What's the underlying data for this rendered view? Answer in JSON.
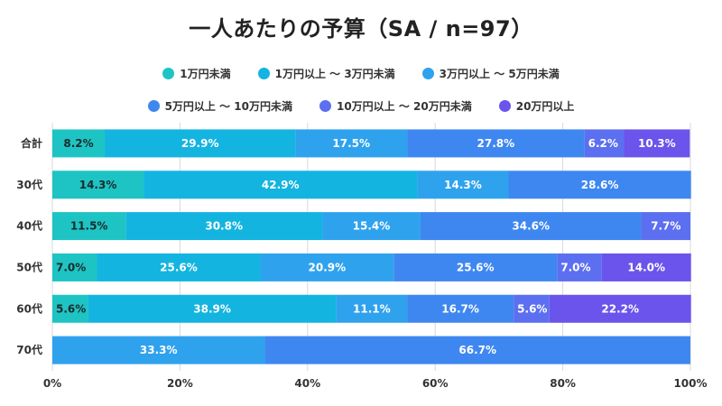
{
  "chart_data": {
    "type": "bar",
    "orientation": "horizontal",
    "stacked": true,
    "title": "一人あたりの予算（SA / n=97）",
    "categories": [
      "合計",
      "30代",
      "40代",
      "50代",
      "60代",
      "70代"
    ],
    "series": [
      {
        "name": "1万円未満",
        "color": "#1ec4c4",
        "values": [
          8.2,
          14.3,
          11.5,
          7.0,
          5.6,
          0
        ]
      },
      {
        "name": "1万円以上 〜 3万円未満",
        "color": "#14b4e0",
        "values": [
          29.9,
          42.9,
          30.8,
          25.6,
          38.9,
          0
        ]
      },
      {
        "name": "3万円以上 〜 5万円未満",
        "color": "#2fa2ee",
        "values": [
          17.5,
          14.3,
          15.4,
          20.9,
          11.1,
          33.3
        ]
      },
      {
        "name": "5万円以上 〜 10万円未満",
        "color": "#3f87f0",
        "values": [
          27.8,
          28.6,
          34.6,
          25.6,
          16.7,
          66.7
        ]
      },
      {
        "name": "10万円以上 〜 20万円未満",
        "color": "#5c6ff0",
        "values": [
          6.2,
          0,
          7.7,
          7.0,
          5.6,
          0
        ]
      },
      {
        "name": "20万円以上",
        "color": "#6a54ec",
        "values": [
          10.3,
          0,
          0,
          14.0,
          22.2,
          0
        ]
      }
    ],
    "labels": [
      [
        "8.2%",
        "29.9%",
        "17.5%",
        "27.8%",
        "6.2%",
        "10.3%"
      ],
      [
        "14.3%",
        "42.9%",
        "14.3%",
        "28.6%",
        "",
        ""
      ],
      [
        "11.5%",
        "30.8%",
        "15.4%",
        "34.6%",
        "7.7%",
        ""
      ],
      [
        "7.0%",
        "25.6%",
        "20.9%",
        "25.6%",
        "7.0%",
        "14.0%"
      ],
      [
        "5.6%",
        "38.9%",
        "11.1%",
        "16.7%",
        "5.6%",
        "22.2%"
      ],
      [
        "",
        "",
        "33.3%",
        "66.7%",
        "",
        ""
      ]
    ],
    "xlim": [
      0,
      100
    ],
    "xticks": [
      0,
      20,
      40,
      60,
      80,
      100
    ],
    "xtick_labels": [
      "0%",
      "20%",
      "40%",
      "60%",
      "80%",
      "100%"
    ],
    "grid": true,
    "legend_position": "top"
  }
}
